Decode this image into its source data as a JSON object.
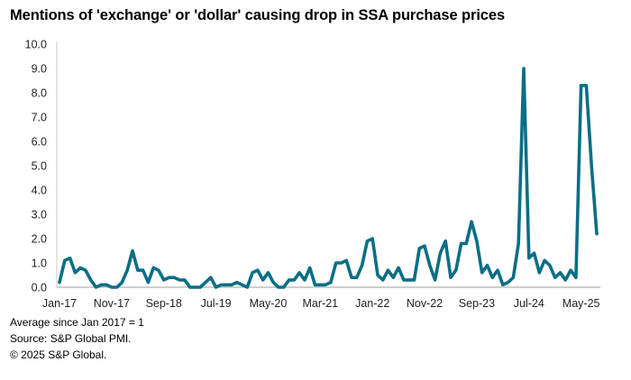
{
  "chart_data": {
    "type": "line",
    "title": "Mentions of 'exchange' or 'dollar' causing drop in SSA purchase prices",
    "xlabel": "",
    "ylabel": "",
    "ylim": [
      0,
      10
    ],
    "yticks": [
      "0.0",
      "1.0",
      "2.0",
      "3.0",
      "4.0",
      "5.0",
      "6.0",
      "7.0",
      "8.0",
      "9.0",
      "10.0"
    ],
    "xtick_labels": [
      "Jan-17",
      "Nov-17",
      "Sep-18",
      "Jul-19",
      "May-20",
      "Mar-21",
      "Jan-22",
      "Nov-22",
      "Sep-23",
      "Jul-24",
      "May-25"
    ],
    "xtick_step_months": 10,
    "start": "Jan-17",
    "end": "Aug-25",
    "grid": false,
    "series": [
      {
        "name": "Mentions",
        "color": "#0b6e85",
        "values": [
          0.2,
          1.1,
          1.2,
          0.6,
          0.8,
          0.7,
          0.3,
          0.0,
          0.1,
          0.1,
          0.0,
          0.0,
          0.2,
          0.7,
          1.5,
          0.7,
          0.7,
          0.2,
          0.8,
          0.7,
          0.3,
          0.4,
          0.4,
          0.3,
          0.3,
          0.0,
          0.0,
          0.0,
          0.2,
          0.4,
          0.0,
          0.1,
          0.1,
          0.1,
          0.2,
          0.1,
          0.0,
          0.6,
          0.7,
          0.3,
          0.6,
          0.2,
          0.0,
          0.0,
          0.3,
          0.3,
          0.6,
          0.3,
          0.8,
          0.1,
          0.1,
          0.1,
          0.2,
          1.0,
          1.0,
          1.1,
          0.4,
          0.4,
          0.9,
          1.9,
          2.0,
          0.5,
          0.3,
          0.7,
          0.4,
          0.8,
          0.3,
          0.3,
          0.3,
          1.6,
          1.7,
          0.9,
          0.3,
          1.4,
          1.9,
          0.4,
          0.7,
          1.8,
          1.8,
          2.7,
          1.9,
          0.6,
          0.9,
          0.4,
          0.7,
          0.1,
          0.2,
          0.4,
          1.8,
          9.0,
          1.2,
          1.4,
          0.6,
          1.1,
          0.9,
          0.4,
          0.6,
          0.3,
          0.7,
          0.4,
          8.3,
          8.3,
          5.0,
          2.2
        ]
      }
    ]
  },
  "notes": {
    "average": "Average since Jan 2017 = 1",
    "source": "Source: S&P Global PMI.",
    "copyright": "© 2025 S&P Global."
  }
}
